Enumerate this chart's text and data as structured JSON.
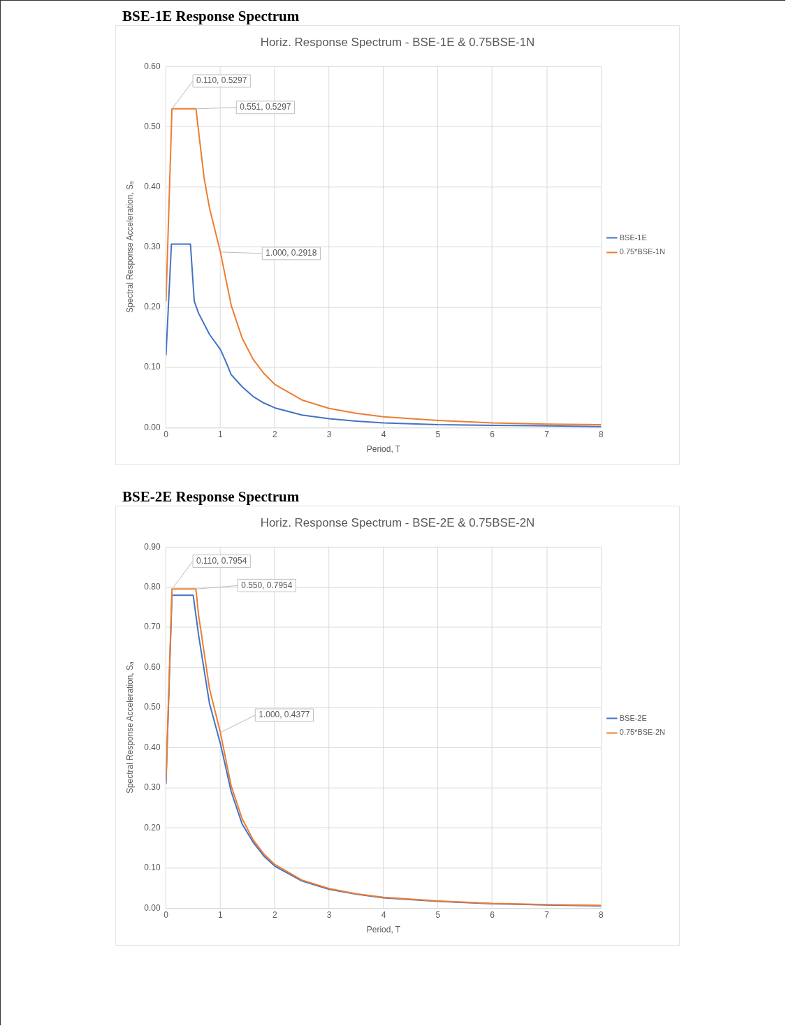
{
  "chart_data": [
    {
      "type": "line",
      "title": "BSE-1E Response Spectrum",
      "subtitle": "Horiz. Response Spectrum - BSE-1E & 0.75BSE-1N",
      "xlabel": "Period, T",
      "ylabel": "Spectral Response Acceleration, Sₐ",
      "xlim": [
        0,
        8
      ],
      "xticks": [
        0,
        1,
        2,
        3,
        4,
        5,
        6,
        7,
        8
      ],
      "ylim": [
        0,
        0.6
      ],
      "yticks": [
        {
          "value": 0,
          "label": "0.00"
        },
        {
          "value": 0.1,
          "label": "0.10"
        },
        {
          "value": 0.2,
          "label": "0.20"
        },
        {
          "value": 0.3,
          "label": "0.30"
        },
        {
          "value": 0.4,
          "label": "0.40"
        },
        {
          "value": 0.5,
          "label": "0.50"
        },
        {
          "value": 0.6,
          "label": "0.60"
        }
      ],
      "grid": true,
      "legend": "right",
      "series": [
        {
          "name": "BSE-1E",
          "color": "#4472c4",
          "x": [
            0,
            0.1,
            0.45,
            0.52,
            0.6,
            0.8,
            1.0,
            1.1,
            1.2,
            1.4,
            1.6,
            1.8,
            2,
            2.5,
            3,
            3.5,
            4,
            5,
            6,
            7,
            8
          ],
          "values": [
            0.12,
            0.305,
            0.305,
            0.21,
            0.19,
            0.155,
            0.13,
            0.11,
            0.088,
            0.068,
            0.052,
            0.041,
            0.033,
            0.021,
            0.015,
            0.011,
            0.008,
            0.005,
            0.004,
            0.003,
            0.002
          ]
        },
        {
          "name": "0.75*BSE-1N",
          "color": "#ed7d31",
          "x": [
            0,
            0.11,
            0.551,
            0.7,
            0.8,
            1.0,
            1.2,
            1.4,
            1.6,
            1.8,
            2,
            2.5,
            3,
            3.5,
            4,
            5,
            6,
            7,
            8
          ],
          "values": [
            0.21,
            0.5297,
            0.5297,
            0.415,
            0.365,
            0.2918,
            0.203,
            0.149,
            0.114,
            0.09,
            0.072,
            0.046,
            0.032,
            0.024,
            0.018,
            0.012,
            0.008,
            0.006,
            0.005
          ]
        }
      ],
      "annotations": [
        {
          "text": "0.110, 0.5297",
          "x": 0.11,
          "y": 0.5297
        },
        {
          "text": "0.551, 0.5297",
          "x": 0.551,
          "y": 0.5297
        },
        {
          "text": "1.000, 0.2918",
          "x": 1.0,
          "y": 0.2918
        }
      ]
    },
    {
      "type": "line",
      "title": "BSE-2E Response Spectrum",
      "subtitle": "Horiz. Response Spectrum - BSE-2E & 0.75BSE-2N",
      "xlabel": "Period, T",
      "ylabel": "Spectral Response Acceleration, Sₐ",
      "xlim": [
        0,
        8
      ],
      "xticks": [
        0,
        1,
        2,
        3,
        4,
        5,
        6,
        7,
        8
      ],
      "ylim": [
        0,
        0.9
      ],
      "yticks": [
        {
          "value": 0,
          "label": "0.00"
        },
        {
          "value": 0.1,
          "label": "0.10"
        },
        {
          "value": 0.2,
          "label": "0.20"
        },
        {
          "value": 0.3,
          "label": "0.30"
        },
        {
          "value": 0.4,
          "label": "0.40"
        },
        {
          "value": 0.5,
          "label": "0.50"
        },
        {
          "value": 0.6,
          "label": "0.60"
        },
        {
          "value": 0.7,
          "label": "0.70"
        },
        {
          "value": 0.8,
          "label": "0.80"
        },
        {
          "value": 0.9,
          "label": "0.90"
        }
      ],
      "grid": true,
      "legend": "right",
      "series": [
        {
          "name": "BSE-2E",
          "color": "#4472c4",
          "x": [
            0,
            0.11,
            0.5,
            0.6,
            0.8,
            1,
            1.2,
            1.4,
            1.6,
            1.8,
            2,
            2.5,
            3,
            3.5,
            4,
            5,
            6,
            7,
            8
          ],
          "values": [
            0.31,
            0.78,
            0.78,
            0.68,
            0.51,
            0.41,
            0.29,
            0.21,
            0.165,
            0.13,
            0.105,
            0.068,
            0.047,
            0.035,
            0.026,
            0.017,
            0.011,
            0.008,
            0.006
          ]
        },
        {
          "name": "0.75*BSE-2N",
          "color": "#ed7d31",
          "x": [
            0,
            0.11,
            0.55,
            0.6,
            0.8,
            1,
            1.2,
            1.4,
            1.6,
            1.8,
            2,
            2.5,
            3,
            3.5,
            4,
            5,
            6,
            7,
            8
          ],
          "values": [
            0.32,
            0.7954,
            0.7954,
            0.73,
            0.547,
            0.4377,
            0.304,
            0.223,
            0.171,
            0.135,
            0.109,
            0.07,
            0.049,
            0.036,
            0.027,
            0.018,
            0.012,
            0.009,
            0.007
          ]
        }
      ],
      "annotations": [
        {
          "text": "0.110, 0.7954",
          "x": 0.11,
          "y": 0.7954
        },
        {
          "text": "0.550, 0.7954",
          "x": 0.55,
          "y": 0.7954
        },
        {
          "text": "1.000, 0.4377",
          "x": 1.0,
          "y": 0.4377
        }
      ]
    }
  ]
}
